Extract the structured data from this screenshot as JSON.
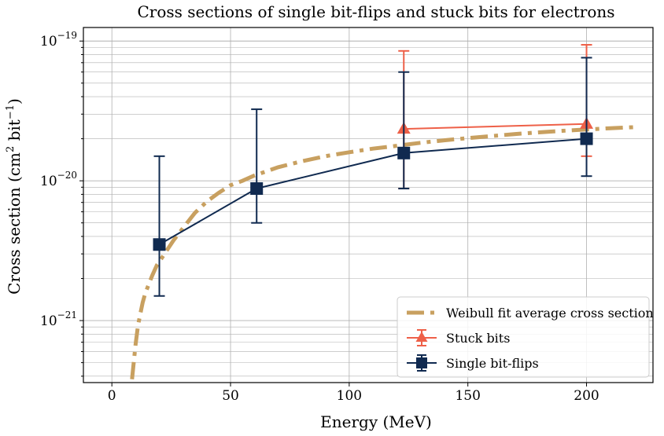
{
  "chart_data": {
    "type": "line",
    "title": "Cross sections of single bit-flips and stuck bits for electrons",
    "xlabel": "Energy (MeV)",
    "ylabel": "Cross section (cm² bit⁻¹)",
    "xlim": [
      -12,
      228
    ],
    "ylim": [
      3.6e-22,
      1.25e-19
    ],
    "yscale": "log",
    "grid": true,
    "legend_position": "bottom-right",
    "x_ticks": [
      0,
      50,
      100,
      150,
      200
    ],
    "x_tick_labels": [
      "0",
      "50",
      "100",
      "150",
      "200"
    ],
    "y_major_ticks": [
      1e-21,
      1e-20,
      1e-19
    ],
    "y_tick_labels": [
      {
        "base": "10",
        "exp": "−21"
      },
      {
        "base": "10",
        "exp": "−20"
      },
      {
        "base": "10",
        "exp": "−19"
      }
    ],
    "series": [
      {
        "name": "Weibull fit average cross section",
        "kind": "fit",
        "color": "#c8a060",
        "x": [
          8.5,
          9,
          10,
          11,
          12,
          13,
          14,
          15,
          17,
          19,
          21,
          23,
          26,
          30,
          35,
          40,
          45,
          50,
          55,
          60,
          70,
          80,
          90,
          100,
          110,
          120,
          130,
          140,
          150,
          160,
          170,
          180,
          190,
          200,
          210,
          220
        ],
        "y": [
          3.8e-22,
          4.6e-22,
          6.8e-22,
          9.2e-22,
          1.12e-21,
          1.35e-21,
          1.55e-21,
          1.72e-21,
          2.1e-21,
          2.5e-21,
          2.8e-21,
          3.15e-21,
          3.75e-21,
          4.6e-21,
          5.9e-21,
          7.1e-21,
          8.2e-21,
          9.3e-21,
          1e-20,
          1.09e-20,
          1.25e-20,
          1.38e-20,
          1.5e-20,
          1.6e-20,
          1.7e-20,
          1.78e-20,
          1.87e-20,
          1.95e-20,
          2.02e-20,
          2.09e-20,
          2.16e-20,
          2.22e-20,
          2.28e-20,
          2.33e-20,
          2.38e-20,
          2.42e-20
        ]
      },
      {
        "name": "Stuck bits",
        "kind": "errorbar",
        "marker": "triangle",
        "color": "#ee6048",
        "x": [
          123,
          200
        ],
        "y": [
          2.35e-20,
          2.55e-20
        ],
        "yerr_low": [
          8.8e-21,
          1.5e-20
        ],
        "yerr_high": [
          8.5e-20,
          9.4e-20
        ]
      },
      {
        "name": "Single bit-flips",
        "kind": "errorbar",
        "marker": "square",
        "color": "#102a50",
        "x": [
          20,
          61,
          123,
          200
        ],
        "y": [
          3.5e-21,
          8.8e-21,
          1.58e-20,
          2e-20
        ],
        "yerr_low": [
          1.5e-21,
          5e-21,
          8.8e-21,
          1.08e-20
        ],
        "yerr_high": [
          1.5e-20,
          3.25e-20,
          6e-20,
          7.6e-20
        ]
      }
    ]
  }
}
